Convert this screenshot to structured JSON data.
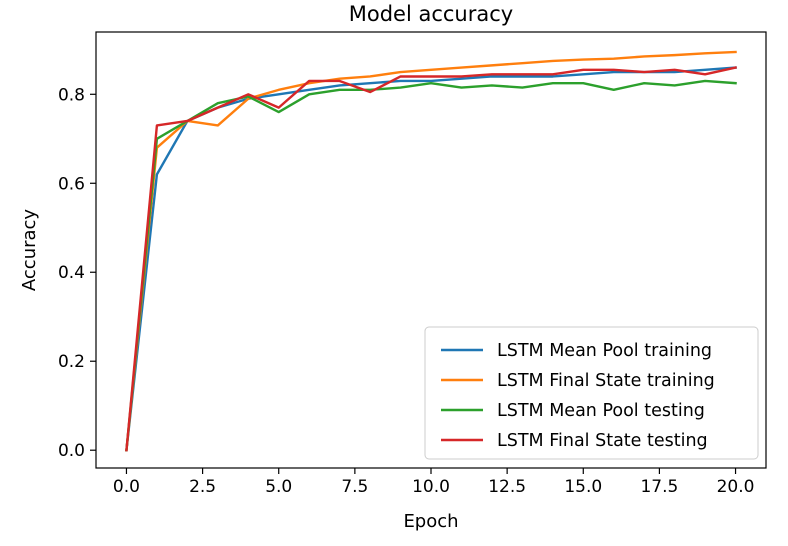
{
  "chart_data": {
    "type": "line",
    "title": "Model accuracy",
    "xlabel": "Epoch",
    "ylabel": "Accuracy",
    "xlim": [
      -1.0,
      21.0
    ],
    "ylim": [
      -0.04,
      0.94
    ],
    "xticks": [
      0.0,
      2.5,
      5.0,
      7.5,
      10.0,
      12.5,
      15.0,
      17.5,
      20.0
    ],
    "xtick_labels": [
      "0.0",
      "2.5",
      "5.0",
      "7.5",
      "10.0",
      "12.5",
      "15.0",
      "17.5",
      "20.0"
    ],
    "yticks": [
      0.0,
      0.2,
      0.4,
      0.6,
      0.8
    ],
    "ytick_labels": [
      "0.0",
      "0.2",
      "0.4",
      "0.6",
      "0.8"
    ],
    "grid": false,
    "legend_position": "lower-right",
    "x": [
      0,
      1,
      2,
      3,
      4,
      5,
      6,
      7,
      8,
      9,
      10,
      11,
      12,
      13,
      14,
      15,
      16,
      17,
      18,
      19,
      20
    ],
    "series": [
      {
        "name": "LSTM Mean Pool training",
        "color": "#1f77b4",
        "values": [
          0.0,
          0.62,
          0.74,
          0.77,
          0.79,
          0.8,
          0.81,
          0.82,
          0.825,
          0.83,
          0.83,
          0.835,
          0.84,
          0.84,
          0.84,
          0.845,
          0.85,
          0.85,
          0.85,
          0.855,
          0.86
        ]
      },
      {
        "name": "LSTM Final State training",
        "color": "#ff7f0e",
        "values": [
          0.0,
          0.68,
          0.74,
          0.73,
          0.79,
          0.81,
          0.825,
          0.835,
          0.84,
          0.85,
          0.855,
          0.86,
          0.865,
          0.87,
          0.875,
          0.878,
          0.88,
          0.885,
          0.888,
          0.892,
          0.895
        ]
      },
      {
        "name": "LSTM Mean Pool testing",
        "color": "#2ca02c",
        "values": [
          0.0,
          0.7,
          0.74,
          0.78,
          0.795,
          0.76,
          0.8,
          0.81,
          0.81,
          0.815,
          0.825,
          0.815,
          0.82,
          0.815,
          0.825,
          0.825,
          0.81,
          0.825,
          0.82,
          0.83,
          0.825
        ]
      },
      {
        "name": "LSTM Final State testing",
        "color": "#d62728",
        "values": [
          0.0,
          0.73,
          0.74,
          0.77,
          0.8,
          0.77,
          0.83,
          0.83,
          0.805,
          0.84,
          0.84,
          0.84,
          0.845,
          0.845,
          0.845,
          0.855,
          0.855,
          0.85,
          0.855,
          0.845,
          0.86
        ]
      }
    ]
  }
}
